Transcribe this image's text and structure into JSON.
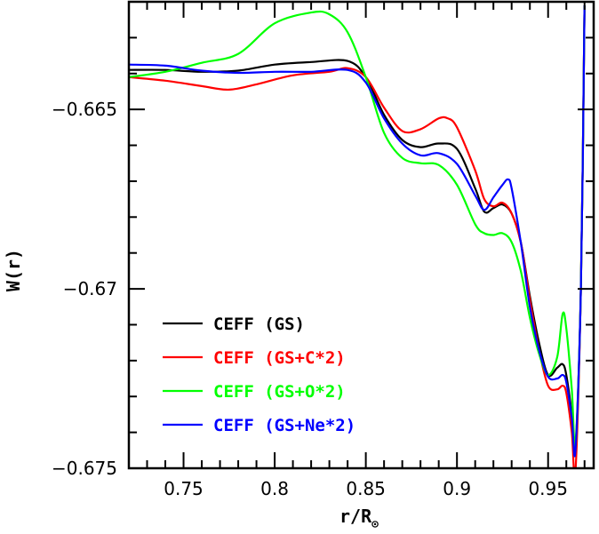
{
  "chart_data": {
    "type": "line",
    "title": "",
    "xlabel": "r/R",
    "xlabel_sub": "⊙",
    "ylabel": "W(r)",
    "xlim": [
      0.72,
      0.975
    ],
    "ylim": [
      -0.675,
      -0.662
    ],
    "x_ticks": [
      0.75,
      0.8,
      0.85,
      0.9,
      0.95
    ],
    "x_tick_labels": [
      "0.75",
      "0.8",
      "0.85",
      "0.9",
      "0.95"
    ],
    "y_ticks": [
      -0.665,
      -0.67,
      -0.675
    ],
    "y_tick_labels": [
      "−0.665",
      "−0.67",
      "−0.675"
    ],
    "x_minor_step": 0.01,
    "y_minor_step": 0.001,
    "grid": false,
    "legend_position": "bottom-left",
    "series": [
      {
        "name": "CEFF (GS)",
        "color": "#000000",
        "points": [
          [
            0.72,
            -0.6639
          ],
          [
            0.74,
            -0.6639
          ],
          [
            0.76,
            -0.66395
          ],
          [
            0.78,
            -0.66392
          ],
          [
            0.8,
            -0.66375
          ],
          [
            0.82,
            -0.66368
          ],
          [
            0.84,
            -0.66365
          ],
          [
            0.85,
            -0.6641
          ],
          [
            0.86,
            -0.66515
          ],
          [
            0.87,
            -0.66585
          ],
          [
            0.88,
            -0.66605
          ],
          [
            0.89,
            -0.66595
          ],
          [
            0.9,
            -0.6661
          ],
          [
            0.91,
            -0.6672
          ],
          [
            0.915,
            -0.66785
          ],
          [
            0.92,
            -0.66775
          ],
          [
            0.925,
            -0.66765
          ],
          [
            0.93,
            -0.6679
          ],
          [
            0.935,
            -0.6687
          ],
          [
            0.94,
            -0.6702
          ],
          [
            0.945,
            -0.6715
          ],
          [
            0.95,
            -0.6724
          ],
          [
            0.955,
            -0.6722
          ],
          [
            0.958,
            -0.6721
          ],
          [
            0.96,
            -0.6724
          ],
          [
            0.963,
            -0.6735
          ],
          [
            0.965,
            -0.6745
          ],
          [
            0.968,
            -0.67
          ],
          [
            0.97,
            -0.6621
          ]
        ]
      },
      {
        "name": "CEFF (GS+C*2)",
        "color": "#ff0000",
        "points": [
          [
            0.72,
            -0.6641
          ],
          [
            0.74,
            -0.6642
          ],
          [
            0.76,
            -0.66435
          ],
          [
            0.775,
            -0.66445
          ],
          [
            0.79,
            -0.6643
          ],
          [
            0.81,
            -0.66405
          ],
          [
            0.83,
            -0.66395
          ],
          [
            0.84,
            -0.66385
          ],
          [
            0.85,
            -0.6641
          ],
          [
            0.86,
            -0.66495
          ],
          [
            0.87,
            -0.6656
          ],
          [
            0.88,
            -0.66555
          ],
          [
            0.89,
            -0.66525
          ],
          [
            0.895,
            -0.66525
          ],
          [
            0.9,
            -0.6655
          ],
          [
            0.91,
            -0.6667
          ],
          [
            0.915,
            -0.6675
          ],
          [
            0.92,
            -0.6677
          ],
          [
            0.925,
            -0.6676
          ],
          [
            0.93,
            -0.6679
          ],
          [
            0.935,
            -0.6687
          ],
          [
            0.94,
            -0.6703
          ],
          [
            0.945,
            -0.6717
          ],
          [
            0.95,
            -0.6727
          ],
          [
            0.955,
            -0.6728
          ],
          [
            0.958,
            -0.6727
          ],
          [
            0.96,
            -0.6729
          ],
          [
            0.963,
            -0.674
          ],
          [
            0.965,
            -0.6751
          ],
          [
            0.968,
            -0.67
          ],
          [
            0.97,
            -0.6621
          ]
        ]
      },
      {
        "name": "CEFF (GS+O*2)",
        "color": "#00ff00",
        "points": [
          [
            0.72,
            -0.6641
          ],
          [
            0.74,
            -0.66395
          ],
          [
            0.76,
            -0.6637
          ],
          [
            0.78,
            -0.66345
          ],
          [
            0.8,
            -0.6626
          ],
          [
            0.82,
            -0.6623
          ],
          [
            0.83,
            -0.66235
          ],
          [
            0.84,
            -0.66285
          ],
          [
            0.85,
            -0.6641
          ],
          [
            0.86,
            -0.66565
          ],
          [
            0.87,
            -0.66635
          ],
          [
            0.88,
            -0.6665
          ],
          [
            0.89,
            -0.66655
          ],
          [
            0.9,
            -0.6671
          ],
          [
            0.91,
            -0.6682
          ],
          [
            0.915,
            -0.66845
          ],
          [
            0.92,
            -0.6685
          ],
          [
            0.925,
            -0.66845
          ],
          [
            0.93,
            -0.6687
          ],
          [
            0.935,
            -0.6695
          ],
          [
            0.94,
            -0.6708
          ],
          [
            0.945,
            -0.6718
          ],
          [
            0.95,
            -0.6724
          ],
          [
            0.955,
            -0.6719
          ],
          [
            0.958,
            -0.6707
          ],
          [
            0.96,
            -0.6711
          ],
          [
            0.963,
            -0.6728
          ],
          [
            0.965,
            -0.6743
          ],
          [
            0.968,
            -0.67
          ],
          [
            0.97,
            -0.6621
          ]
        ]
      },
      {
        "name": "CEFF (GS+Ne*2)",
        "color": "#0000ff",
        "points": [
          [
            0.72,
            -0.66375
          ],
          [
            0.74,
            -0.66378
          ],
          [
            0.76,
            -0.66392
          ],
          [
            0.78,
            -0.66398
          ],
          [
            0.8,
            -0.66395
          ],
          [
            0.82,
            -0.66395
          ],
          [
            0.84,
            -0.6639
          ],
          [
            0.85,
            -0.66425
          ],
          [
            0.86,
            -0.66525
          ],
          [
            0.87,
            -0.66595
          ],
          [
            0.88,
            -0.66628
          ],
          [
            0.89,
            -0.66622
          ],
          [
            0.9,
            -0.66652
          ],
          [
            0.91,
            -0.6674
          ],
          [
            0.915,
            -0.6678
          ],
          [
            0.92,
            -0.66745
          ],
          [
            0.925,
            -0.6671
          ],
          [
            0.928,
            -0.66695
          ],
          [
            0.93,
            -0.6672
          ],
          [
            0.935,
            -0.6687
          ],
          [
            0.94,
            -0.6705
          ],
          [
            0.945,
            -0.6717
          ],
          [
            0.95,
            -0.67245
          ],
          [
            0.955,
            -0.6725
          ],
          [
            0.958,
            -0.6724
          ],
          [
            0.96,
            -0.6726
          ],
          [
            0.963,
            -0.6736
          ],
          [
            0.965,
            -0.6745
          ],
          [
            0.968,
            -0.67
          ],
          [
            0.97,
            -0.6621
          ]
        ]
      }
    ]
  }
}
